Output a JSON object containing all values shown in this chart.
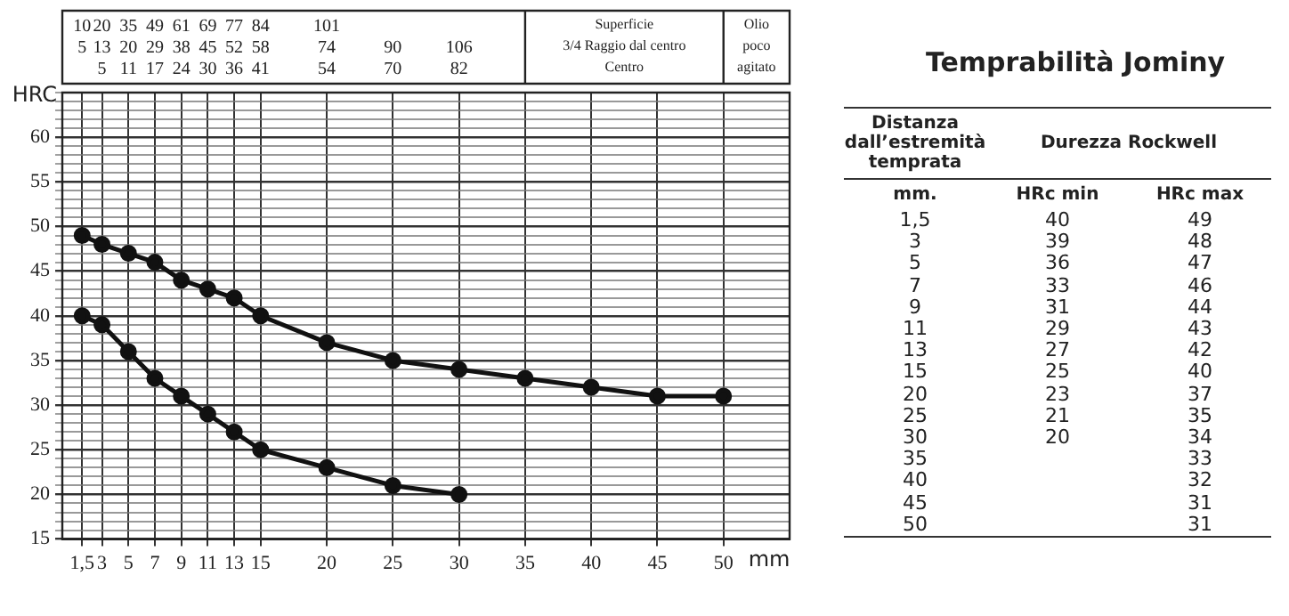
{
  "chart_data": {
    "type": "line",
    "title": "Temprabilità Jominy",
    "xlabel": "mm",
    "ylabel": "HRC",
    "x": [
      1.5,
      3,
      5,
      7,
      9,
      11,
      13,
      15,
      20,
      25,
      30,
      35,
      40,
      45,
      50
    ],
    "series": [
      {
        "color": "#111111",
        "values": [
          40,
          39,
          36,
          33,
          31,
          29,
          27,
          25,
          23,
          21,
          20,
          null,
          null,
          null,
          null
        ]
      },
      {
        "color": "#111111",
        "values": [
          49,
          48,
          47,
          46,
          44,
          43,
          42,
          40,
          37,
          35,
          34,
          33,
          32,
          31,
          31
        ]
      }
    ],
    "xlim": [
      0,
      55
    ],
    "xticks": [
      {
        "value": 1.5,
        "label": "1,5"
      },
      3,
      5,
      7,
      9,
      11,
      13,
      15,
      20,
      25,
      30,
      35,
      40,
      45,
      50
    ],
    "ylim": [
      15,
      65
    ],
    "yticks": [
      15,
      {
        "value": 16,
        "label": null
      },
      {
        "value": 17,
        "label": null
      },
      {
        "value": 18,
        "label": null
      },
      {
        "value": 19,
        "label": null
      },
      20,
      {
        "value": 21,
        "label": null
      },
      {
        "value": 22,
        "label": null
      },
      {
        "value": 23,
        "label": null
      },
      {
        "value": 24,
        "label": null
      },
      25,
      {
        "value": 26,
        "label": null
      },
      {
        "value": 27,
        "label": null
      },
      {
        "value": 28,
        "label": null
      },
      {
        "value": 29,
        "label": null
      },
      30,
      {
        "value": 31,
        "label": null
      },
      {
        "value": 32,
        "label": null
      },
      {
        "value": 33,
        "label": null
      },
      {
        "value": 34,
        "label": null
      },
      35,
      {
        "value": 36,
        "label": null
      },
      {
        "value": 37,
        "label": null
      },
      {
        "value": 38,
        "label": null
      },
      {
        "value": 39,
        "label": null
      },
      40,
      {
        "value": 41,
        "label": null
      },
      {
        "value": 42,
        "label": null
      },
      {
        "value": 43,
        "label": null
      },
      {
        "value": 44,
        "label": null
      },
      45,
      {
        "value": 46,
        "label": null
      },
      {
        "value": 47,
        "label": null
      },
      {
        "value": 48,
        "label": null
      },
      {
        "value": 49,
        "label": null
      },
      50,
      {
        "value": 51,
        "label": null
      },
      {
        "value": 52,
        "label": null
      },
      {
        "value": 53,
        "label": null
      },
      {
        "value": 54,
        "label": null
      },
      55,
      {
        "value": 56,
        "label": null
      },
      {
        "value": 57,
        "label": null
      },
      {
        "value": 58,
        "label": null
      },
      {
        "value": 59,
        "label": null
      },
      60,
      {
        "value": 61,
        "label": null
      },
      {
        "value": 62,
        "label": null
      },
      {
        "value": 63,
        "label": null
      },
      {
        "value": 64,
        "label": null
      },
      {
        "value": 65,
        "label": null
      }
    ],
    "annotations": [
      "Distanza dall’estremità temprata",
      "Durezza Rockwell",
      "mm.",
      "HRc min",
      "HRc max",
      "1,5\n3\n5\n7\n9\n11\n13\n15\n20\n25\n30\n35\n40\n45\n50",
      "40\n39\n36\n33\n31\n29\n27\n25\n23\n21\n20",
      "49\n48\n47\n46\n44\n43\n42\n40\n37\n35\n34\n33\n32\n31\n31",
      "10\n5",
      "20\n13\n5",
      "35\n20\n11",
      "49\n29\n17",
      "61\n38\n24",
      "69\n45\n30",
      "77\n52\n36",
      "84\n58\n41",
      "101\n74\n54",
      "\n90\n70",
      "\n106\n82",
      "Superficie\n3/4 Raggio dal centro\nCentro",
      "Olio\npoco\nagitato"
    ],
    "grid": true,
    "legend": false,
    "marker": "circle",
    "line_style": "solid"
  }
}
